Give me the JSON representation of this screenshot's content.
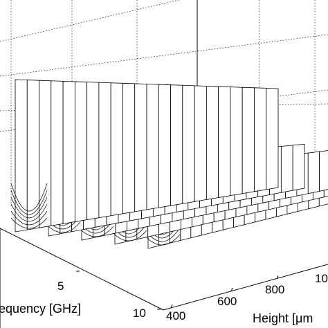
{
  "chart_data": {
    "type": "surface",
    "title": "",
    "grid": true,
    "colors": {
      "surface_fill": "#ffffff",
      "mesh_line": "#000000",
      "grid_line": "#000000"
    },
    "axes": {
      "height": {
        "label": "Height [μm",
        "ticks": [
          400,
          600,
          800,
          "10"
        ],
        "range": [
          400,
          1000
        ]
      },
      "frequency": {
        "label": "equency [GHz]",
        "ticks": [
          5,
          10
        ],
        "range": [
          0,
          10
        ]
      }
    },
    "visible_text": {
      "height_ticks": [
        "400",
        "600",
        "800",
        "10"
      ],
      "frequency_ticks": [
        "5",
        "10"
      ]
    }
  }
}
